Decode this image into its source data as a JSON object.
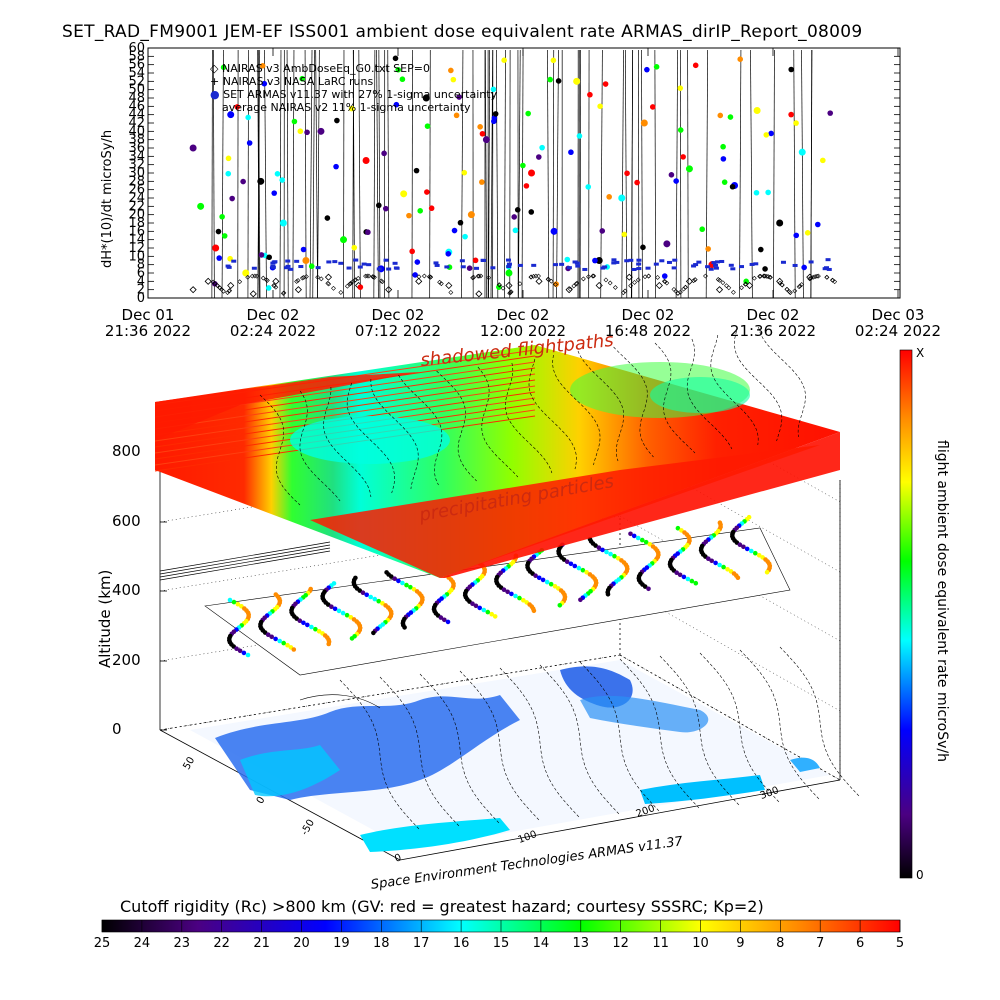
{
  "title": "SET_RAD_FM9001   JEM-EF ISS001 ambient dose equivalent rate ARMAS_dirIP_Report_08009",
  "top_chart": {
    "ylabel": "dH*(10)/dt microSy/h",
    "legend": [
      {
        "symbol": "◇",
        "label": "NAIRAS v3 AmbDoseEq_G0.txt SEP=0"
      },
      {
        "symbol": "+",
        "label": "NAIRAS v3 NASA LaRC runs"
      },
      {
        "symbol": "●",
        "label": "SET ARMAS v11.37 with 27% 1-sigma uncertainty"
      },
      {
        "symbol": "",
        "label": "average NAIRAS v2 11% 1-sigma uncertainty"
      }
    ],
    "x_ticks": [
      {
        "line1": "Dec 01",
        "line2": "21:36 2022"
      },
      {
        "line1": "Dec 02",
        "line2": "02:24 2022"
      },
      {
        "line1": "Dec 02",
        "line2": "07:12 2022"
      },
      {
        "line1": "Dec 02",
        "line2": "12:00 2022"
      },
      {
        "line1": "Dec 02",
        "line2": "16:48 2022"
      },
      {
        "line1": "Dec 02",
        "line2": "21:36 2022"
      },
      {
        "line1": "Dec 03",
        "line2": "02:24 2022"
      }
    ]
  },
  "chart_data": {
    "type": "scatter",
    "ylim": [
      0,
      60
    ],
    "y_ticks": [
      "0",
      "2",
      "4",
      "6",
      "8",
      "10",
      "12",
      "14",
      "16",
      "18",
      "20",
      "22",
      "24",
      "26",
      "28",
      "30",
      "32",
      "34",
      "36",
      "38",
      "40",
      "42",
      "44",
      "46",
      "48",
      "50",
      "52",
      "54",
      "56",
      "58",
      "60"
    ],
    "series": [
      {
        "name": "NAIRAS v3 AmbDoseEq_G0.txt SEP=0",
        "marker": "diamond",
        "color": "#000000",
        "x": [
          0.06,
          0.08,
          0.11,
          0.14,
          0.17,
          0.2,
          0.24,
          0.28,
          0.32,
          0.36,
          0.4,
          0.44,
          0.48,
          0.52,
          0.56,
          0.6,
          0.64,
          0.68,
          0.72,
          0.76,
          0.8,
          0.84,
          0.88
        ],
        "values": [
          2,
          4,
          3,
          1,
          4,
          2,
          5,
          3,
          2,
          4,
          3,
          1,
          3,
          4,
          2,
          3,
          5,
          3,
          4,
          2,
          3,
          4,
          5
        ]
      },
      {
        "name": "SET ARMAS v11.37 with 27% 1-sigma uncertainty",
        "marker": "circle",
        "color": "#1a2ad0",
        "x": [
          0.06,
          0.07,
          0.09,
          0.11,
          0.13,
          0.15,
          0.18,
          0.21,
          0.23,
          0.26,
          0.29,
          0.31,
          0.34,
          0.37,
          0.4,
          0.43,
          0.45,
          0.48,
          0.51,
          0.54,
          0.57,
          0.6,
          0.63,
          0.66,
          0.69,
          0.72,
          0.75,
          0.78,
          0.81,
          0.84,
          0.87
        ],
        "values": [
          36,
          22,
          12,
          44,
          6,
          28,
          18,
          9,
          40,
          14,
          33,
          7,
          25,
          48,
          11,
          20,
          38,
          6,
          30,
          16,
          52,
          9,
          24,
          42,
          13,
          31,
          8,
          27,
          45,
          18,
          35
        ]
      }
    ],
    "colorbar": {
      "label": "flight ambient dose equivalent rate microSv/h",
      "max_label": "X",
      "min_label": "0"
    },
    "zlabel": "Altitude (km)",
    "z_ticks": [
      "0",
      "200",
      "400",
      "600",
      "800"
    ],
    "lat_ticks": [
      "-50",
      "0",
      "50"
    ],
    "lon_ticks": [
      "0",
      "100",
      "200",
      "300"
    ]
  },
  "overlay": {
    "top_text": "shadowed flightpaths",
    "mid_text": "precipitating particles",
    "credit": "Space Environment Technologies ARMAS v11.37"
  },
  "bottom_colorbar": {
    "title": "Cutoff rigidity (Rc) >800 km (GV: red = greatest hazard; courtesy SSSRC; Kp=2)",
    "ticks": [
      "25",
      "24",
      "23",
      "22",
      "21",
      "20",
      "19",
      "18",
      "17",
      "16",
      "15",
      "14",
      "13",
      "12",
      "11",
      "10",
      "9",
      "8",
      "7",
      "6",
      "5"
    ]
  },
  "colors": {
    "jet_stops": [
      "#000000",
      "#4b0082",
      "#0000ff",
      "#00ffff",
      "#00ff00",
      "#ffff00",
      "#ff8c00",
      "#ff0000"
    ]
  }
}
